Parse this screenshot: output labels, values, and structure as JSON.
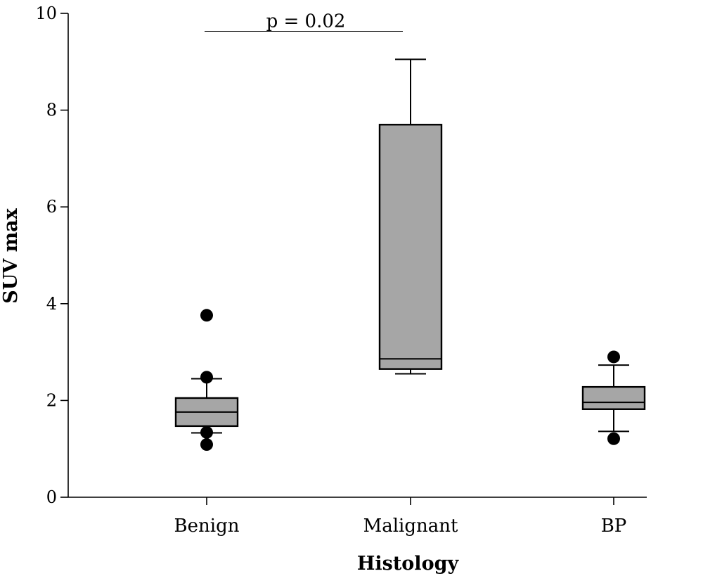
{
  "chart_data": {
    "type": "box",
    "title": "",
    "xlabel": "Histology",
    "ylabel": "SUV max",
    "ylim": [
      0,
      10
    ],
    "yticks": [
      "0",
      "2",
      "4",
      "6",
      "8",
      "10"
    ],
    "grid": false,
    "categories": [
      "Benign",
      "Malignant",
      "BP"
    ],
    "boxes": [
      {
        "category": "Benign",
        "whisker_low": 1.33,
        "q1": 1.47,
        "median": 1.76,
        "q3": 2.05,
        "whisker_high": 2.45,
        "outliers": [
          1.09,
          1.34,
          2.48,
          3.76
        ]
      },
      {
        "category": "Malignant",
        "whisker_low": 2.55,
        "q1": 2.65,
        "median": 2.86,
        "q3": 7.7,
        "whisker_high": 9.05,
        "outliers": []
      },
      {
        "category": "BP",
        "whisker_low": 1.36,
        "q1": 1.82,
        "median": 1.96,
        "q3": 2.28,
        "whisker_high": 2.73,
        "outliers": [
          1.21,
          2.9
        ]
      }
    ],
    "annotations": [
      {
        "text": "p = 0.02",
        "from": "Benign",
        "to": "Malignant",
        "y": 9.63
      }
    ],
    "colors": {
      "box_fill": "#a6a6a6",
      "stroke": "#000000",
      "outlier": "#000000"
    }
  }
}
